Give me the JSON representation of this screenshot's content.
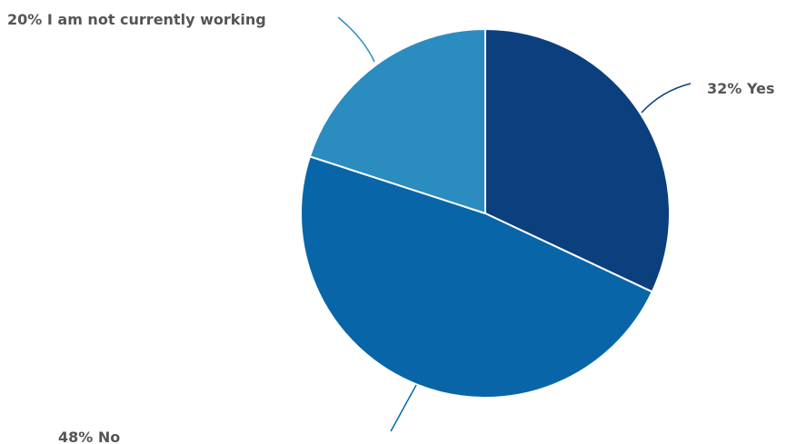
{
  "chart_data": {
    "type": "pie",
    "start_angle": "12 o'clock",
    "direction": "clockwise",
    "slices": [
      {
        "label": "Yes",
        "value": 32,
        "display": "32% Yes",
        "color": "#0b3f7e"
      },
      {
        "label": "No",
        "value": 48,
        "display": "48% No",
        "color": "#0866a8"
      },
      {
        "label": "I am not currently working",
        "value": 20,
        "display": "20% I am not currently working",
        "color": "#2b8cbf"
      }
    ],
    "legend": "none",
    "data_labels": "outside with leader lines"
  }
}
